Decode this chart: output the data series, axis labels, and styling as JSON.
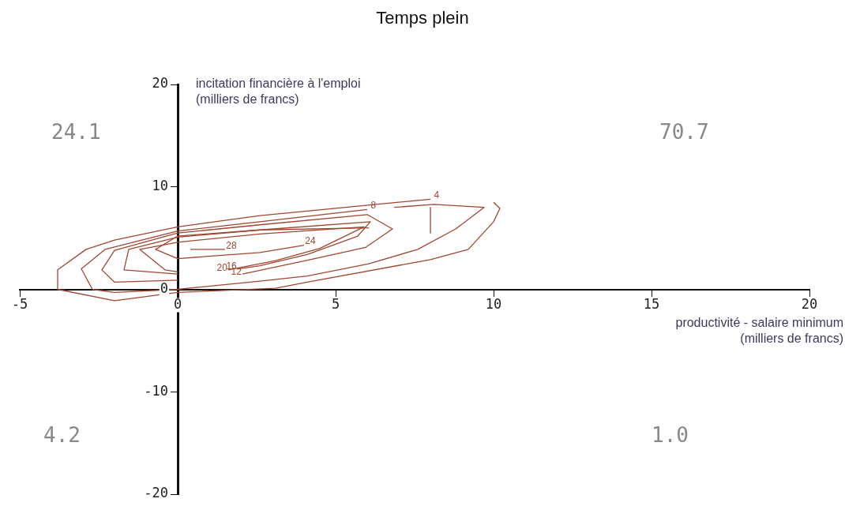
{
  "chart_data": {
    "type": "line",
    "title": "Temps plein",
    "xlabel": "productivité - salaire minimum\n(milliers de francs)",
    "ylabel": "incitation financière à l'emploi\n(milliers de francs)",
    "xlim": [
      -5,
      20
    ],
    "xticks": [
      -5,
      0,
      5,
      10,
      15,
      20
    ],
    "ylim": [
      -20,
      20
    ],
    "yticks": [
      -20,
      -10,
      0,
      10,
      20
    ],
    "grid": false,
    "legend": false,
    "marker": "none",
    "line_style": "solid",
    "series": [
      {
        "name": "4",
        "color": "#a0472f",
        "x": [
          8,
          2.6,
          0,
          -2,
          -2.9,
          -3.8,
          -3.8,
          -2,
          0,
          3.1,
          4.1,
          8,
          9.2,
          10,
          10.2,
          10
        ],
        "values": [
          8.8,
          7.2,
          6.1,
          4.8,
          3.9,
          1.9,
          0,
          -1.1,
          -0.3,
          0.1,
          0.7,
          2.9,
          3.9,
          6.6,
          7.9,
          8.5
        ]
      },
      {
        "name": "8",
        "color": "#a0472f",
        "x": [
          6,
          2.6,
          0,
          -2.3,
          -3.05,
          -2.7,
          -2,
          0,
          2.6,
          4.1,
          6.05,
          7.6,
          8.8,
          9.7,
          8.1,
          6.85
        ],
        "values": [
          7.8,
          6.6,
          5.7,
          3.9,
          2,
          0,
          -0.3,
          0,
          0.8,
          1.3,
          2.5,
          3.9,
          5.9,
          8,
          8.3,
          8
        ]
      },
      {
        "name": "12",
        "color": "#a0472f",
        "x": [
          2.05,
          4.05,
          5.95,
          6.8,
          6,
          2.6,
          0,
          -2,
          -2.4,
          -2,
          0
        ],
        "values": [
          1.5,
          2.8,
          4.1,
          5.9,
          7.3,
          6.3,
          5.5,
          3.8,
          1.9,
          0.7,
          0.9
        ]
      },
      {
        "name": "16",
        "color": "#a0472f",
        "x": [
          1.9,
          2.6,
          4.1,
          5.7,
          6.1,
          2.6,
          0,
          -1.55,
          -1.7,
          0
        ],
        "values": [
          2,
          2.3,
          3.4,
          5.2,
          6.6,
          5.8,
          5.1,
          3.9,
          1.9,
          1.5
        ]
      },
      {
        "name": "20",
        "color": "#a0472f",
        "x": [
          1.6,
          3.1,
          4.5,
          5.9,
          2.6,
          0,
          -1.2,
          -0.4,
          0
        ],
        "values": [
          1.9,
          2.8,
          4,
          6.1,
          5.4,
          4.6,
          3.9,
          1.9,
          1.7
        ]
      },
      {
        "name": "24",
        "color": "#a0472f",
        "x": [
          4,
          2.6,
          0,
          -0.7,
          0,
          2.6,
          6.05
        ],
        "values": [
          4.3,
          3.6,
          3,
          3.9,
          5.2,
          5.8,
          6
        ]
      },
      {
        "name": "28",
        "color": "#a0472f",
        "x": [
          1.5,
          0.4
        ],
        "values": [
          3.9,
          3.9
        ]
      },
      {
        "color": "#a0472f",
        "x": [
          8,
          8
        ],
        "values": [
          8,
          5.5
        ]
      }
    ],
    "annotations": [
      "24.1",
      "70.7",
      "4.2",
      "1.0"
    ]
  }
}
